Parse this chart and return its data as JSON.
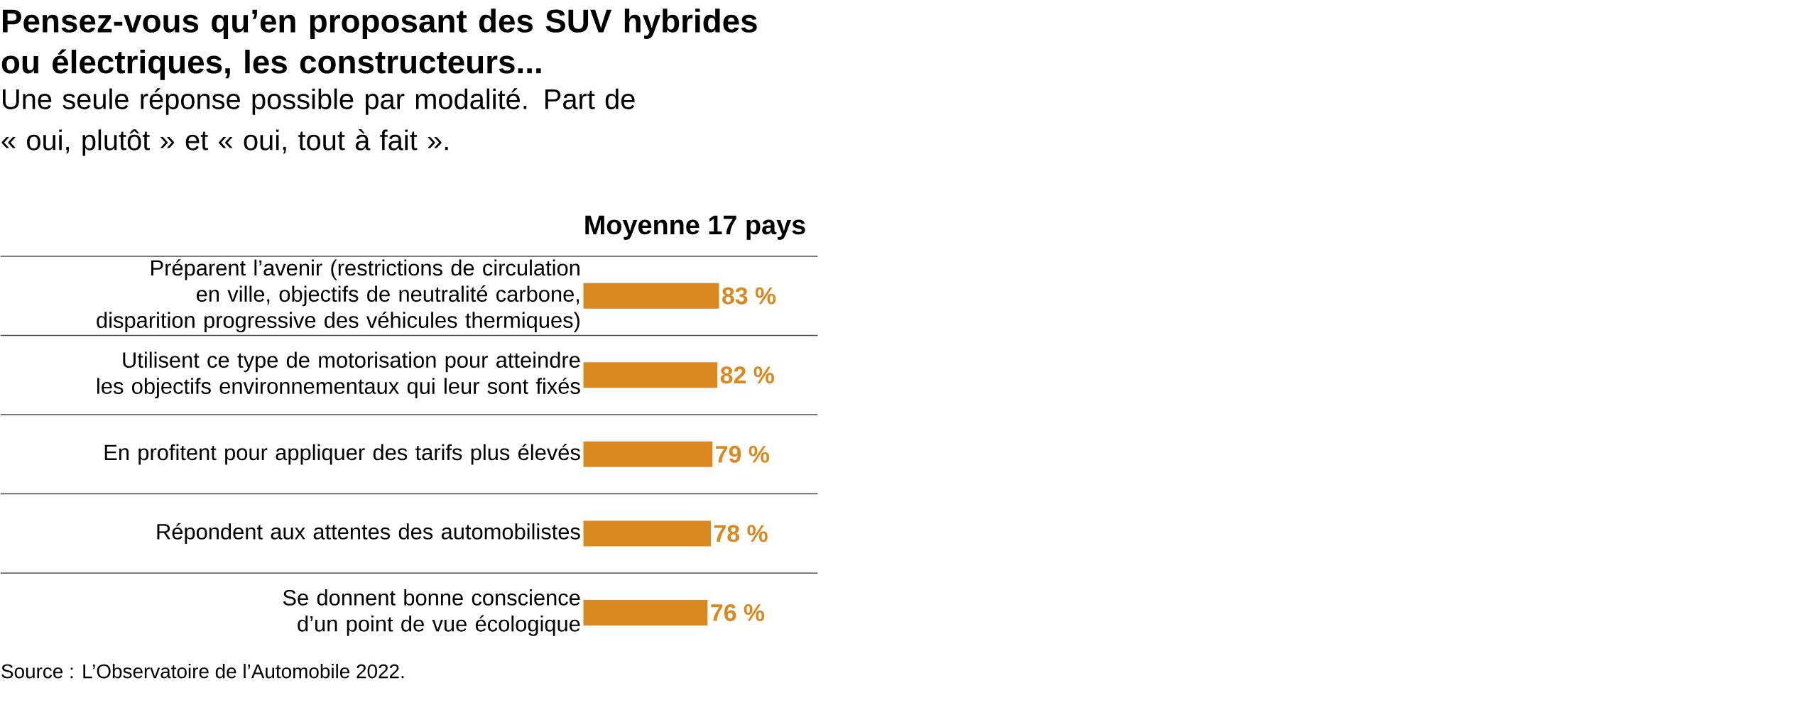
{
  "chart_data": {
    "type": "bar",
    "orientation": "horizontal",
    "title": "Pensez-vous qu’en proposant des SUV hybrides ou électriques, les constructeurs...",
    "subtitle": "Une seule réponse possible par modalité. Part de « oui, plutôt » et « oui, tout à fait ».",
    "categories": [
      "Préparent l’avenir (restrictions de circulation en ville, objectifs de neutralité carbone, disparition progressive des véhicules thermiques)",
      "Utilisent ce type de motorisation pour atteindre les objectifs environnementaux qui leur sont fixés",
      "En profitent pour appliquer des tarifs plus élevés",
      "Répondent aux attentes des automobilistes",
      "Se donnent bonne conscience d’un point de vue écologique"
    ],
    "series": [
      {
        "name": "Moyenne 17 pays",
        "color": "#d9891f",
        "values": [
          83,
          82,
          79,
          78,
          76
        ],
        "value_labels": [
          "83 %",
          "82 %",
          "79 %",
          "78 %",
          "76 %"
        ]
      }
    ],
    "grid": "y",
    "annotations": [
      "Source : L’Observatoire de l’Automobile 2022."
    ]
  }
}
